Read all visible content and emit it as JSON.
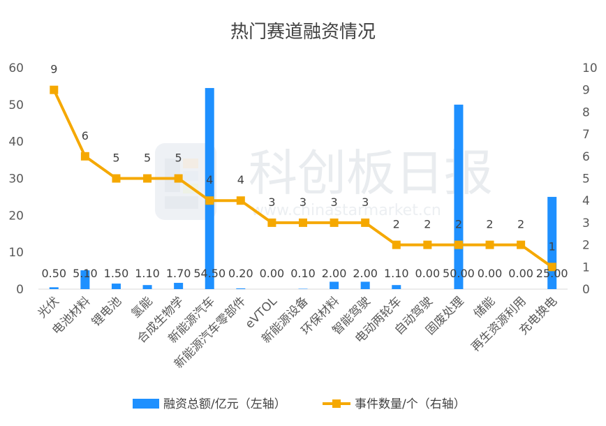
{
  "colors": {
    "bar": "#1e90ff",
    "line": "#f5a800",
    "axis_text": "#595959",
    "axis_line": "#d9d9d9",
    "watermark": "#e9ecef"
  },
  "watermark": {
    "brand": "科创板日报",
    "site": "www.chinastarmarket.cn",
    "logo_icon": "kechuang-logo-icon"
  },
  "chart_data": {
    "type": "bar",
    "title": "热门赛道融资情况",
    "categories": [
      "光伏",
      "电池材料",
      "锂电池",
      "氢能",
      "合成生物学",
      "新能源汽车",
      "新能源汽车零部件",
      "eVTOL",
      "新能源设备",
      "环保材料",
      "智能驾驶",
      "电动两轮车",
      "自动驾驶",
      "固废处理",
      "储能",
      "再生资源利用",
      "充电换电"
    ],
    "series": [
      {
        "name": "融资总额/亿元（左轴）",
        "type": "bar",
        "axis": "left",
        "values": [
          0.5,
          5.1,
          1.5,
          1.1,
          1.7,
          54.5,
          0.2,
          0.0,
          0.1,
          2.0,
          2.0,
          1.1,
          0.0,
          50.0,
          0.0,
          0.0,
          25.0
        ],
        "labels": [
          "0.50",
          "5.10",
          "1.50",
          "1.10",
          "1.70",
          "54.50",
          "0.20",
          "0.00",
          "0.10",
          "2.00",
          "2.00",
          "1.10",
          "0.00",
          "50.00",
          "0.00",
          "0.00",
          "25.00"
        ]
      },
      {
        "name": "事件数量/个（右轴）",
        "type": "line",
        "axis": "right",
        "values": [
          9,
          6,
          5,
          5,
          5,
          4,
          4,
          3,
          3,
          3,
          3,
          2,
          2,
          2,
          2,
          2,
          1
        ],
        "labels": [
          "9",
          "6",
          "5",
          "5",
          "5",
          "4",
          "4",
          "3",
          "3",
          "3",
          "3",
          "2",
          "2",
          "2",
          "2",
          "2",
          "1"
        ]
      }
    ],
    "y_left": {
      "min": 0,
      "max": 60,
      "ticks": [
        "0",
        "10",
        "20",
        "30",
        "40",
        "50",
        "60"
      ]
    },
    "y_right": {
      "min": 0,
      "max": 10,
      "ticks": [
        "0",
        "1",
        "2",
        "3",
        "4",
        "5",
        "6",
        "7",
        "8",
        "9",
        "10"
      ]
    },
    "grid": false,
    "legend_position": "bottom"
  }
}
